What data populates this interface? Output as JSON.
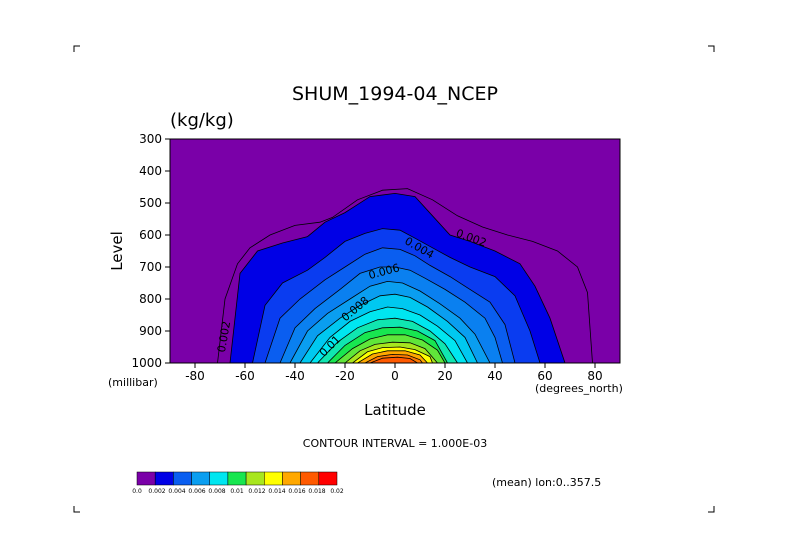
{
  "chart_data": {
    "type": "heatmap",
    "title": "SHUM_1994-04_NCEP",
    "units": "(kg/kg)",
    "xlabel": "Latitude",
    "ylabel": "Level",
    "x_units": "(degrees_north)",
    "y_units": "(millibar)",
    "x_ticks": [
      "-80",
      "-60",
      "-40",
      "-20",
      "0",
      "20",
      "40",
      "60",
      "80"
    ],
    "y_ticks": [
      "300",
      "400",
      "500",
      "600",
      "700",
      "800",
      "900",
      "1000"
    ],
    "xlim": [
      -90,
      90
    ],
    "ylim": [
      1000,
      300
    ],
    "contour_interval_text": "CONTOUR INTERVAL = 1.000E-03",
    "footnote": "(mean) lon:0..357.5",
    "contour_labels": [
      {
        "text": "0.002",
        "lat": -67,
        "level": 920,
        "rotate": -80
      },
      {
        "text": "0.002",
        "lat": 30,
        "level": 620,
        "rotate": 20
      },
      {
        "text": "0.004",
        "lat": 9,
        "level": 650,
        "rotate": 30
      },
      {
        "text": "0.006",
        "lat": -4,
        "level": 725,
        "rotate": -15
      },
      {
        "text": "0.008",
        "lat": -15,
        "level": 840,
        "rotate": -40
      },
      {
        "text": "0.01",
        "lat": -25,
        "level": 955,
        "rotate": -45
      }
    ],
    "colorbar": {
      "colors": [
        "#7a00a8",
        "#0000e6",
        "#0a5ef0",
        "#0a9ef0",
        "#00e6f0",
        "#18e650",
        "#a8e61e",
        "#ffff00",
        "#ffa800",
        "#ff5a00",
        "#ff0000"
      ],
      "labels": [
        "0.0",
        "0.002",
        "0.004",
        "0.006",
        "0.008",
        "0.01",
        "0.012",
        "0.014",
        "0.016",
        "0.018",
        "0.02"
      ]
    },
    "levels_profile": [
      {
        "value": 0.001,
        "color": "#7a00a8",
        "bottom_lat": [
          -71,
          79
        ],
        "top_level": 460,
        "pts": [
          [
            -90,
            1000
          ],
          [
            90,
            1000
          ]
        ]
      },
      {
        "value": 0.002,
        "color": "#0000e6",
        "pts": [
          [
            -66,
            1000
          ],
          [
            -62,
            720
          ],
          [
            -55,
            650
          ],
          [
            -45,
            625
          ],
          [
            -35,
            605
          ],
          [
            -28,
            560
          ],
          [
            -20,
            530
          ],
          [
            -10,
            480
          ],
          [
            0,
            470
          ],
          [
            8,
            480
          ],
          [
            15,
            540
          ],
          [
            22,
            600
          ],
          [
            30,
            620
          ],
          [
            40,
            650
          ],
          [
            50,
            690
          ],
          [
            56,
            760
          ],
          [
            62,
            860
          ],
          [
            68,
            1000
          ]
        ]
      },
      {
        "value": 0.003,
        "color": "#0a3cf0",
        "pts": [
          [
            -57,
            1000
          ],
          [
            -52,
            820
          ],
          [
            -45,
            750
          ],
          [
            -35,
            710
          ],
          [
            -28,
            670
          ],
          [
            -20,
            620
          ],
          [
            -12,
            595
          ],
          [
            -5,
            580
          ],
          [
            2,
            585
          ],
          [
            8,
            610
          ],
          [
            15,
            640
          ],
          [
            22,
            670
          ],
          [
            30,
            700
          ],
          [
            40,
            730
          ],
          [
            48,
            790
          ],
          [
            54,
            900
          ],
          [
            58,
            1000
          ]
        ]
      },
      {
        "value": 0.004,
        "color": "#0a5ef0",
        "pts": [
          [
            -52,
            1000
          ],
          [
            -46,
            860
          ],
          [
            -38,
            800
          ],
          [
            -28,
            740
          ],
          [
            -20,
            700
          ],
          [
            -12,
            660
          ],
          [
            -5,
            640
          ],
          [
            2,
            645
          ],
          [
            8,
            665
          ],
          [
            14,
            695
          ],
          [
            22,
            730
          ],
          [
            30,
            770
          ],
          [
            38,
            810
          ],
          [
            44,
            880
          ],
          [
            48,
            1000
          ]
        ]
      },
      {
        "value": 0.005,
        "color": "#0a80f0",
        "pts": [
          [
            -46,
            1000
          ],
          [
            -40,
            890
          ],
          [
            -32,
            830
          ],
          [
            -22,
            770
          ],
          [
            -14,
            720
          ],
          [
            -6,
            700
          ],
          [
            0,
            700
          ],
          [
            6,
            710
          ],
          [
            12,
            735
          ],
          [
            20,
            770
          ],
          [
            28,
            810
          ],
          [
            36,
            860
          ],
          [
            40,
            920
          ],
          [
            43,
            1000
          ]
        ]
      },
      {
        "value": 0.006,
        "color": "#0a9ef0",
        "pts": [
          [
            -42,
            1000
          ],
          [
            -35,
            900
          ],
          [
            -27,
            845
          ],
          [
            -18,
            800
          ],
          [
            -10,
            760
          ],
          [
            -3,
            745
          ],
          [
            3,
            750
          ],
          [
            10,
            775
          ],
          [
            18,
            815
          ],
          [
            26,
            860
          ],
          [
            32,
            910
          ],
          [
            38,
            1000
          ]
        ]
      },
      {
        "value": 0.007,
        "color": "#00c8f0",
        "pts": [
          [
            -38,
            1000
          ],
          [
            -31,
            915
          ],
          [
            -22,
            860
          ],
          [
            -14,
            820
          ],
          [
            -6,
            790
          ],
          [
            0,
            785
          ],
          [
            6,
            795
          ],
          [
            13,
            825
          ],
          [
            21,
            870
          ],
          [
            28,
            920
          ],
          [
            33,
            1000
          ]
        ]
      },
      {
        "value": 0.008,
        "color": "#00e6f0",
        "pts": [
          [
            -34,
            1000
          ],
          [
            -26,
            920
          ],
          [
            -18,
            870
          ],
          [
            -10,
            840
          ],
          [
            -3,
            825
          ],
          [
            3,
            830
          ],
          [
            10,
            850
          ],
          [
            17,
            885
          ],
          [
            24,
            930
          ],
          [
            29,
            1000
          ]
        ]
      },
      {
        "value": 0.009,
        "color": "#10e6b0",
        "pts": [
          [
            -31,
            1000
          ],
          [
            -23,
            935
          ],
          [
            -15,
            890
          ],
          [
            -7,
            865
          ],
          [
            0,
            860
          ],
          [
            7,
            870
          ],
          [
            14,
            900
          ],
          [
            20,
            940
          ],
          [
            25,
            1000
          ]
        ]
      },
      {
        "value": 0.01,
        "color": "#18e650",
        "pts": [
          [
            -27,
            1000
          ],
          [
            -20,
            945
          ],
          [
            -12,
            905
          ],
          [
            -5,
            890
          ],
          [
            2,
            888
          ],
          [
            9,
            900
          ],
          [
            16,
            930
          ],
          [
            21,
            1000
          ]
        ]
      },
      {
        "value": 0.011,
        "color": "#60e63a",
        "pts": [
          [
            -24,
            1000
          ],
          [
            -17,
            955
          ],
          [
            -10,
            925
          ],
          [
            -3,
            912
          ],
          [
            4,
            912
          ],
          [
            11,
            928
          ],
          [
            17,
            960
          ],
          [
            20,
            1000
          ]
        ]
      },
      {
        "value": 0.012,
        "color": "#a8e61e",
        "pts": [
          [
            -20,
            1000
          ],
          [
            -14,
            962
          ],
          [
            -8,
            942
          ],
          [
            -1,
            935
          ],
          [
            6,
            937
          ],
          [
            12,
            955
          ],
          [
            17,
            1000
          ]
        ]
      },
      {
        "value": 0.013,
        "color": "#ffff00",
        "pts": [
          [
            -17,
            1000
          ],
          [
            -11,
            965
          ],
          [
            -5,
            952
          ],
          [
            2,
            950
          ],
          [
            8,
            958
          ],
          [
            14,
            980
          ],
          [
            15,
            1000
          ]
        ]
      },
      {
        "value": 0.014,
        "color": "#ffa800",
        "pts": [
          [
            -15,
            1000
          ],
          [
            -9,
            972
          ],
          [
            -3,
            962
          ],
          [
            4,
            962
          ],
          [
            10,
            975
          ],
          [
            13,
            1000
          ]
        ]
      },
      {
        "value": 0.015,
        "color": "#ff7a00",
        "pts": [
          [
            -12,
            1000
          ],
          [
            -7,
            980
          ],
          [
            -1,
            973
          ],
          [
            5,
            975
          ],
          [
            10,
            990
          ],
          [
            11,
            1000
          ]
        ]
      },
      {
        "value": 0.016,
        "color": "#ff5a00",
        "pts": [
          [
            -10,
            1000
          ],
          [
            -5,
            985
          ],
          [
            1,
            982
          ],
          [
            6,
            986
          ],
          [
            9,
            1000
          ]
        ]
      }
    ]
  }
}
